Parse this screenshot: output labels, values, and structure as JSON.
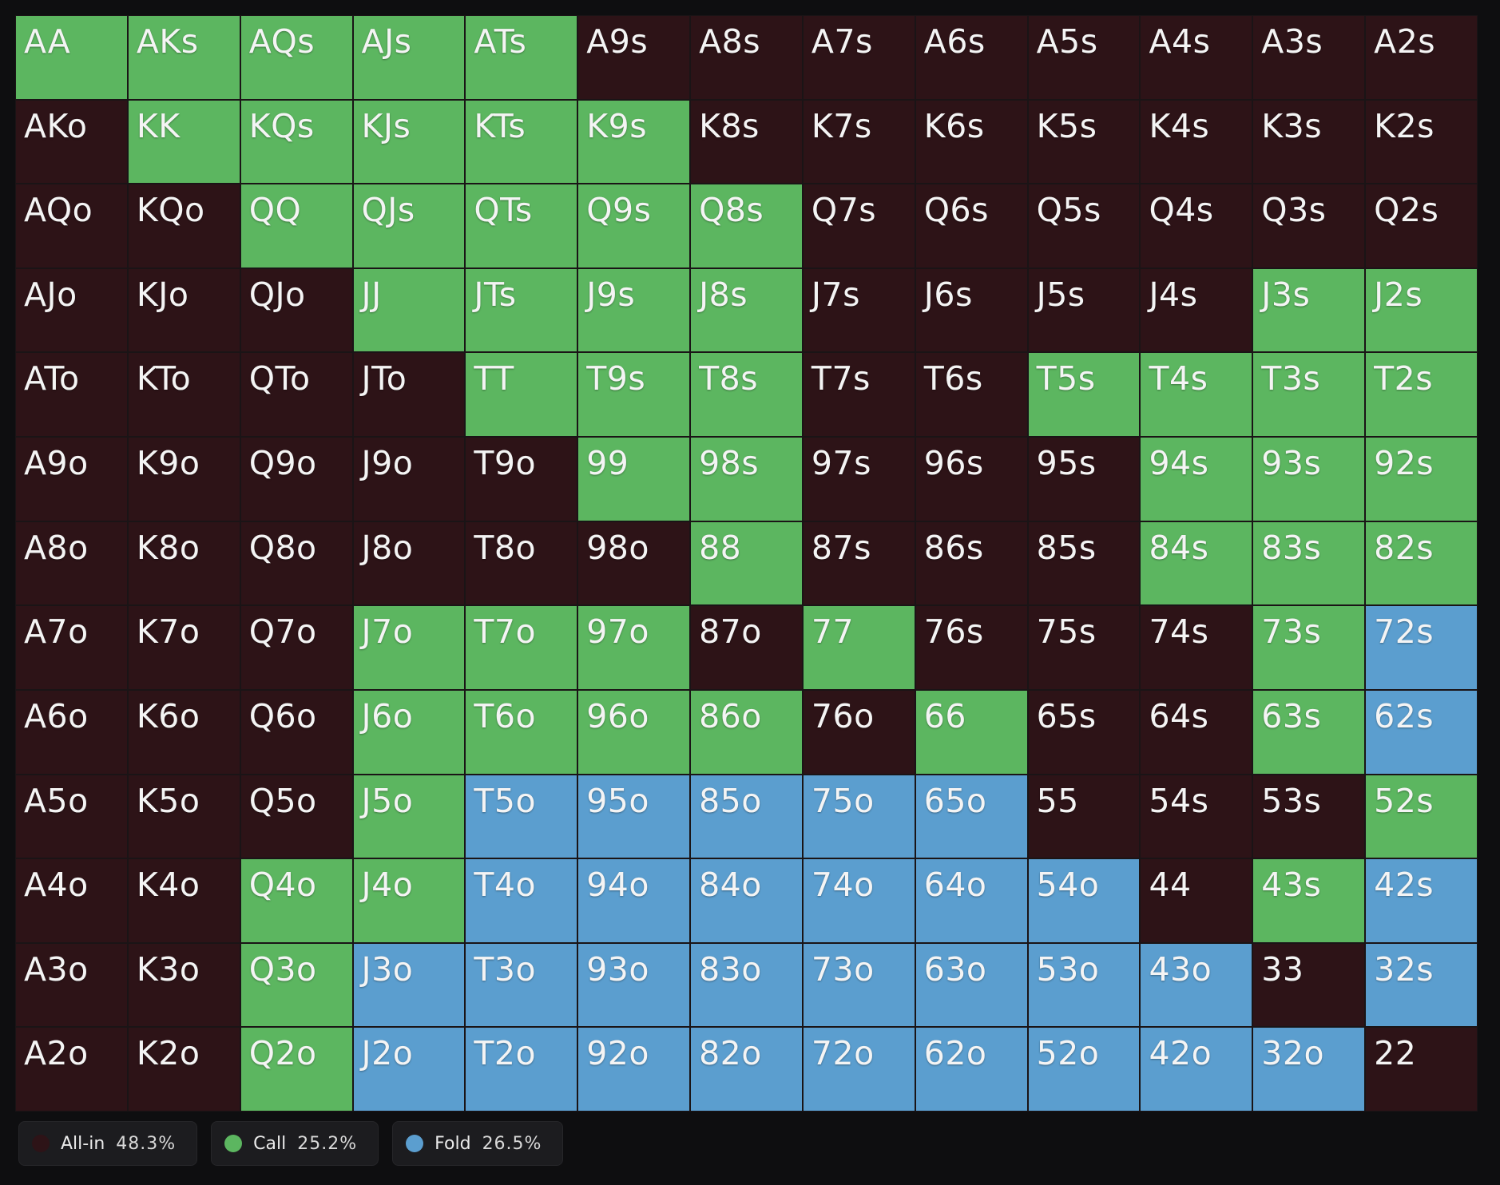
{
  "grid": {
    "labels": [
      [
        "AA",
        "AKs",
        "AQs",
        "AJs",
        "ATs",
        "A9s",
        "A8s",
        "A7s",
        "A6s",
        "A5s",
        "A4s",
        "A3s",
        "A2s"
      ],
      [
        "AKo",
        "KK",
        "KQs",
        "KJs",
        "KTs",
        "K9s",
        "K8s",
        "K7s",
        "K6s",
        "K5s",
        "K4s",
        "K3s",
        "K2s"
      ],
      [
        "AQo",
        "KQo",
        "QQ",
        "QJs",
        "QTs",
        "Q9s",
        "Q8s",
        "Q7s",
        "Q6s",
        "Q5s",
        "Q4s",
        "Q3s",
        "Q2s"
      ],
      [
        "AJo",
        "KJo",
        "QJo",
        "JJ",
        "JTs",
        "J9s",
        "J8s",
        "J7s",
        "J6s",
        "J5s",
        "J4s",
        "J3s",
        "J2s"
      ],
      [
        "ATo",
        "KTo",
        "QTo",
        "JTo",
        "TT",
        "T9s",
        "T8s",
        "T7s",
        "T6s",
        "T5s",
        "T4s",
        "T3s",
        "T2s"
      ],
      [
        "A9o",
        "K9o",
        "Q9o",
        "J9o",
        "T9o",
        "99",
        "98s",
        "97s",
        "96s",
        "95s",
        "94s",
        "93s",
        "92s"
      ],
      [
        "A8o",
        "K8o",
        "Q8o",
        "J8o",
        "T8o",
        "98o",
        "88",
        "87s",
        "86s",
        "85s",
        "84s",
        "83s",
        "82s"
      ],
      [
        "A7o",
        "K7o",
        "Q7o",
        "J7o",
        "T7o",
        "97o",
        "87o",
        "77",
        "76s",
        "75s",
        "74s",
        "73s",
        "72s"
      ],
      [
        "A6o",
        "K6o",
        "Q6o",
        "J6o",
        "T6o",
        "96o",
        "86o",
        "76o",
        "66",
        "65s",
        "64s",
        "63s",
        "62s"
      ],
      [
        "A5o",
        "K5o",
        "Q5o",
        "J5o",
        "T5o",
        "95o",
        "85o",
        "75o",
        "65o",
        "55",
        "54s",
        "53s",
        "52s"
      ],
      [
        "A4o",
        "K4o",
        "Q4o",
        "J4o",
        "T4o",
        "94o",
        "84o",
        "74o",
        "64o",
        "54o",
        "44",
        "43s",
        "42s"
      ],
      [
        "A3o",
        "K3o",
        "Q3o",
        "J3o",
        "T3o",
        "93o",
        "83o",
        "73o",
        "63o",
        "53o",
        "43o",
        "33",
        "32s"
      ],
      [
        "A2o",
        "K2o",
        "Q2o",
        "J2o",
        "T2o",
        "92o",
        "82o",
        "72o",
        "62o",
        "52o",
        "42o",
        "32o",
        "22"
      ]
    ],
    "actions": [
      [
        "Call",
        "Call",
        "Call",
        "Call",
        "Call",
        "All-in",
        "All-in",
        "All-in",
        "All-in",
        "All-in",
        "All-in",
        "All-in",
        "All-in"
      ],
      [
        "All-in",
        "Call",
        "Call",
        "Call",
        "Call",
        "Call",
        "All-in",
        "All-in",
        "All-in",
        "All-in",
        "All-in",
        "All-in",
        "All-in"
      ],
      [
        "All-in",
        "All-in",
        "Call",
        "Call",
        "Call",
        "Call",
        "Call",
        "All-in",
        "All-in",
        "All-in",
        "All-in",
        "All-in",
        "All-in"
      ],
      [
        "All-in",
        "All-in",
        "All-in",
        "Call",
        "Call",
        "Call",
        "Call",
        "All-in",
        "All-in",
        "All-in",
        "All-in",
        "Call",
        "Call"
      ],
      [
        "All-in",
        "All-in",
        "All-in",
        "All-in",
        "Call",
        "Call",
        "Call",
        "All-in",
        "All-in",
        "Call",
        "Call",
        "Call",
        "Call"
      ],
      [
        "All-in",
        "All-in",
        "All-in",
        "All-in",
        "All-in",
        "Call",
        "Call",
        "All-in",
        "All-in",
        "All-in",
        "Call",
        "Call",
        "Call"
      ],
      [
        "All-in",
        "All-in",
        "All-in",
        "All-in",
        "All-in",
        "All-in",
        "Call",
        "All-in",
        "All-in",
        "All-in",
        "Call",
        "Call",
        "Call"
      ],
      [
        "All-in",
        "All-in",
        "All-in",
        "Call",
        "Call",
        "Call",
        "All-in",
        "Call",
        "All-in",
        "All-in",
        "All-in",
        "Call",
        "Fold"
      ],
      [
        "All-in",
        "All-in",
        "All-in",
        "Call",
        "Call",
        "Call",
        "Call",
        "All-in",
        "Call",
        "All-in",
        "All-in",
        "Call",
        "Fold"
      ],
      [
        "All-in",
        "All-in",
        "All-in",
        "Call",
        "Fold",
        "Fold",
        "Fold",
        "Fold",
        "Fold",
        "All-in",
        "All-in",
        "All-in",
        "Call"
      ],
      [
        "All-in",
        "All-in",
        "Call",
        "Call",
        "Fold",
        "Fold",
        "Fold",
        "Fold",
        "Fold",
        "Fold",
        "All-in",
        "Call",
        "Fold"
      ],
      [
        "All-in",
        "All-in",
        "Call",
        "Fold",
        "Fold",
        "Fold",
        "Fold",
        "Fold",
        "Fold",
        "Fold",
        "Fold",
        "All-in",
        "Fold"
      ],
      [
        "All-in",
        "All-in",
        "Call",
        "Fold",
        "Fold",
        "Fold",
        "Fold",
        "Fold",
        "Fold",
        "Fold",
        "Fold",
        "Fold",
        "All-in"
      ]
    ]
  },
  "legend": [
    {
      "name": "All-in",
      "share": "48.3%",
      "color": "#2d1317"
    },
    {
      "name": "Call",
      "share": "25.2%",
      "color": "#5cb660"
    },
    {
      "name": "Fold",
      "share": "26.5%",
      "color": "#5b9ecf"
    }
  ]
}
